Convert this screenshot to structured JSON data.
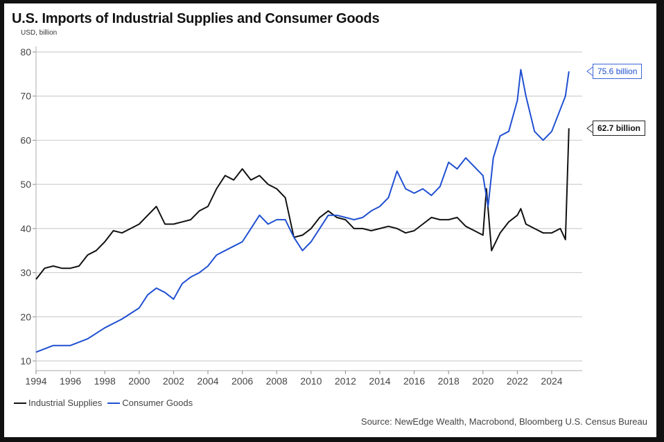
{
  "chart_data": {
    "type": "line",
    "title": "U.S. Imports of Industrial Supplies and Consumer Goods",
    "ylabel": "USD, billion",
    "xlabel": "",
    "xlim": [
      1994,
      2025.8
    ],
    "ylim": [
      10,
      80
    ],
    "yticks": [
      10,
      20,
      30,
      40,
      50,
      60,
      70,
      80
    ],
    "xticks": [
      1994,
      1996,
      1998,
      2000,
      2002,
      2004,
      2006,
      2008,
      2010,
      2012,
      2014,
      2016,
      2018,
      2020,
      2022,
      2024
    ],
    "grid": true,
    "legend_position": "bottom-left",
    "series": [
      {
        "name": "Industrial Supplies",
        "color": "#111111",
        "x": [
          1994.0,
          1994.5,
          1995.0,
          1995.5,
          1996.0,
          1996.5,
          1997.0,
          1997.5,
          1998.0,
          1998.5,
          1999.0,
          1999.5,
          2000.0,
          2000.5,
          2001.0,
          2001.5,
          2002.0,
          2002.5,
          2003.0,
          2003.5,
          2004.0,
          2004.5,
          2005.0,
          2005.5,
          2006.0,
          2006.5,
          2007.0,
          2007.5,
          2008.0,
          2008.5,
          2009.0,
          2009.5,
          2010.0,
          2010.5,
          2011.0,
          2011.5,
          2012.0,
          2012.5,
          2013.0,
          2013.5,
          2014.0,
          2014.5,
          2015.0,
          2015.5,
          2016.0,
          2016.5,
          2017.0,
          2017.5,
          2018.0,
          2018.5,
          2019.0,
          2019.5,
          2020.0,
          2020.2,
          2020.5,
          2021.0,
          2021.5,
          2022.0,
          2022.2,
          2022.5,
          2023.0,
          2023.5,
          2024.0,
          2024.5,
          2024.8,
          2025.0
        ],
        "values": [
          28.5,
          31,
          31.5,
          31,
          31,
          31.5,
          34,
          35,
          37,
          39.5,
          39,
          40,
          41,
          43,
          45,
          41,
          41,
          41.5,
          42,
          44,
          45,
          49,
          52,
          51,
          53.5,
          51,
          52,
          50,
          49,
          47,
          38,
          38.5,
          40,
          42.5,
          44,
          42.5,
          42,
          40,
          40,
          39.5,
          40,
          40.5,
          40,
          39,
          39.5,
          41,
          42.5,
          42,
          42,
          42.5,
          40.5,
          39.5,
          38.5,
          49,
          35,
          39,
          41.5,
          43,
          44.5,
          41,
          40,
          39,
          39,
          40,
          37.5,
          62.7
        ]
      },
      {
        "name": "Consumer Goods",
        "color": "#1f4fd1",
        "x": [
          1994.0,
          1995.0,
          1996.0,
          1997.0,
          1998.0,
          1999.0,
          2000.0,
          2000.5,
          2001.0,
          2001.5,
          2002.0,
          2002.5,
          2003.0,
          2003.5,
          2004.0,
          2004.5,
          2005.0,
          2005.5,
          2006.0,
          2006.5,
          2007.0,
          2007.5,
          2008.0,
          2008.5,
          2009.0,
          2009.5,
          2010.0,
          2010.5,
          2011.0,
          2011.5,
          2012.0,
          2012.5,
          2013.0,
          2013.5,
          2014.0,
          2014.5,
          2015.0,
          2015.5,
          2016.0,
          2016.5,
          2017.0,
          2017.5,
          2018.0,
          2018.5,
          2019.0,
          2019.5,
          2020.0,
          2020.3,
          2020.6,
          2021.0,
          2021.5,
          2022.0,
          2022.2,
          2022.5,
          2023.0,
          2023.5,
          2024.0,
          2024.5,
          2024.8,
          2025.0
        ],
        "values": [
          12,
          13.5,
          13.5,
          15,
          17.5,
          19.5,
          22,
          25,
          26.5,
          25.5,
          24,
          27.5,
          29,
          30,
          31.5,
          34,
          35,
          36,
          37,
          40,
          43,
          41,
          42,
          42,
          38,
          35,
          37,
          40,
          43,
          43,
          42.5,
          42,
          42.5,
          44,
          45,
          47,
          53,
          49,
          48,
          49,
          47.5,
          49.5,
          55,
          53.5,
          56,
          54,
          52,
          45,
          56,
          61,
          62,
          69,
          76,
          70,
          62,
          60,
          62,
          67,
          70,
          75.6
        ]
      }
    ],
    "annotations": [
      {
        "series": "Consumer Goods",
        "text": "75.6 billion",
        "value": 75.6
      },
      {
        "series": "Industrial Supplies",
        "text": "62.7 billion",
        "value": 62.7
      }
    ],
    "source": "Source: NewEdge Wealth, Macrobond, Bloomberg U.S. Census Bureau"
  }
}
